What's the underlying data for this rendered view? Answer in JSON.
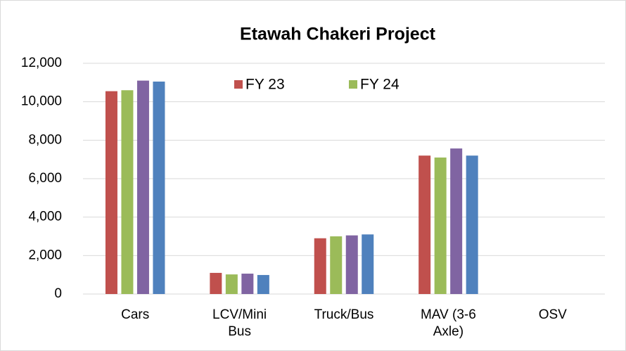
{
  "chart_data": {
    "type": "bar",
    "title": "Etawah Chakeri Project",
    "categories": [
      "Cars",
      "LCV/Mini Bus",
      "Truck/Bus",
      "MAV (3-6 Axle)",
      "OSV"
    ],
    "series": [
      {
        "name": "FY 23",
        "color": "#c0504d",
        "values": [
          10550,
          1100,
          2900,
          7200,
          0
        ]
      },
      {
        "name": "FY 24",
        "color": "#9bbb59",
        "values": [
          10600,
          1020,
          3000,
          7100,
          0
        ]
      },
      {
        "color": "#8064a2",
        "values": [
          11100,
          1060,
          3050,
          7570,
          0
        ]
      },
      {
        "color": "#4f81bd",
        "values": [
          11050,
          990,
          3100,
          7200,
          0
        ]
      }
    ],
    "ylim": [
      0,
      12000
    ],
    "yticks": [
      0,
      {
        "value": 2000,
        "label": "2,000"
      },
      {
        "value": 4000,
        "label": "4,000"
      },
      {
        "value": 6000,
        "label": "6,000"
      },
      {
        "value": 8000,
        "label": "8,000"
      },
      {
        "value": 10000,
        "label": "10,000"
      },
      {
        "value": 12000,
        "label": "12,000"
      }
    ],
    "grid": true,
    "legend": "top"
  }
}
